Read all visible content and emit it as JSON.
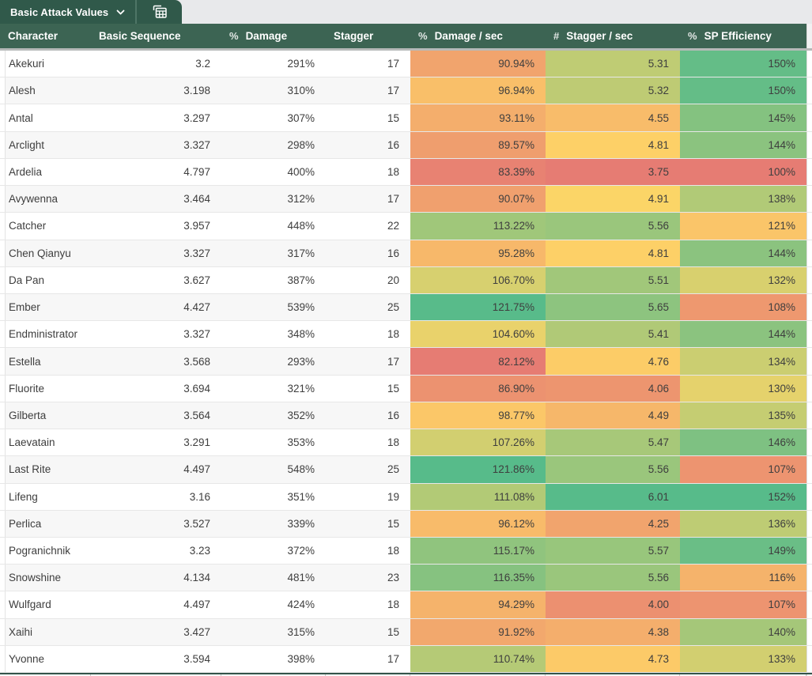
{
  "sheet_tabs": {
    "active_tab_label": "Basic Attack Values",
    "active_tab_dropdown_icon": "chevron-down-icon",
    "picker_tab_icon": "spreadsheet-grid-icon"
  },
  "columns": [
    {
      "label": "Character",
      "format_icon": "",
      "align": "left",
      "colored": false
    },
    {
      "label": "Basic Sequence",
      "format_icon": "",
      "align": "right",
      "colored": false
    },
    {
      "label": "Damage",
      "format_icon": "%",
      "align": "right",
      "colored": false
    },
    {
      "label": "Stagger",
      "format_icon": "",
      "align": "right",
      "colored": false
    },
    {
      "label": "Damage / sec",
      "format_icon": "%",
      "align": "right",
      "colored": true
    },
    {
      "label": "Stagger / sec",
      "format_icon": "#",
      "align": "right",
      "colored": true
    },
    {
      "label": "SP Efficiency",
      "format_icon": "%",
      "align": "right",
      "colored": true
    }
  ],
  "rows": [
    [
      "Akekuri",
      "3.2",
      "291%",
      "17",
      "90.94%",
      "5.31",
      "150%"
    ],
    [
      "Alesh",
      "3.198",
      "310%",
      "17",
      "96.94%",
      "5.32",
      "150%"
    ],
    [
      "Antal",
      "3.297",
      "307%",
      "15",
      "93.11%",
      "4.55",
      "145%"
    ],
    [
      "Arclight",
      "3.327",
      "298%",
      "16",
      "89.57%",
      "4.81",
      "144%"
    ],
    [
      "Ardelia",
      "4.797",
      "400%",
      "18",
      "83.39%",
      "3.75",
      "100%"
    ],
    [
      "Avywenna",
      "3.464",
      "312%",
      "17",
      "90.07%",
      "4.91",
      "138%"
    ],
    [
      "Catcher",
      "3.957",
      "448%",
      "22",
      "113.22%",
      "5.56",
      "121%"
    ],
    [
      "Chen Qianyu",
      "3.327",
      "317%",
      "16",
      "95.28%",
      "4.81",
      "144%"
    ],
    [
      "Da Pan",
      "3.627",
      "387%",
      "20",
      "106.70%",
      "5.51",
      "132%"
    ],
    [
      "Ember",
      "4.427",
      "539%",
      "25",
      "121.75%",
      "5.65",
      "108%"
    ],
    [
      "Endministrator",
      "3.327",
      "348%",
      "18",
      "104.60%",
      "5.41",
      "144%"
    ],
    [
      "Estella",
      "3.568",
      "293%",
      "17",
      "82.12%",
      "4.76",
      "134%"
    ],
    [
      "Fluorite",
      "3.694",
      "321%",
      "15",
      "86.90%",
      "4.06",
      "130%"
    ],
    [
      "Gilberta",
      "3.564",
      "352%",
      "16",
      "98.77%",
      "4.49",
      "135%"
    ],
    [
      "Laevatain",
      "3.291",
      "353%",
      "18",
      "107.26%",
      "5.47",
      "146%"
    ],
    [
      "Last Rite",
      "4.497",
      "548%",
      "25",
      "121.86%",
      "5.56",
      "107%"
    ],
    [
      "Lifeng",
      "3.16",
      "351%",
      "19",
      "111.08%",
      "6.01",
      "152%"
    ],
    [
      "Perlica",
      "3.527",
      "339%",
      "15",
      "96.12%",
      "4.25",
      "136%"
    ],
    [
      "Pogranichnik",
      "3.23",
      "372%",
      "18",
      "115.17%",
      "5.57",
      "149%"
    ],
    [
      "Snowshine",
      "4.134",
      "481%",
      "23",
      "116.35%",
      "5.56",
      "116%"
    ],
    [
      "Wulfgard",
      "4.497",
      "424%",
      "18",
      "94.29%",
      "4.00",
      "107%"
    ],
    [
      "Xaihi",
      "3.427",
      "315%",
      "15",
      "91.92%",
      "4.38",
      "140%"
    ],
    [
      "Yvonne",
      "3.594",
      "398%",
      "17",
      "110.74%",
      "4.73",
      "133%"
    ]
  ],
  "color_scale": {
    "min_color": "#e67c73",
    "mid_color": "#ffd666",
    "max_color": "#57bb8a"
  },
  "theme": {
    "tab_green": "#30594a",
    "header_green": "#3c6453",
    "tabbar_bg": "#e8e9eb",
    "zebra": "#f7f7f7",
    "row_border": "#e7e7e7",
    "text": "#3e3e3e",
    "band": "#b6b9b8",
    "bottom_line": "#33544a",
    "sliver_tick": "#c9c9c9"
  }
}
